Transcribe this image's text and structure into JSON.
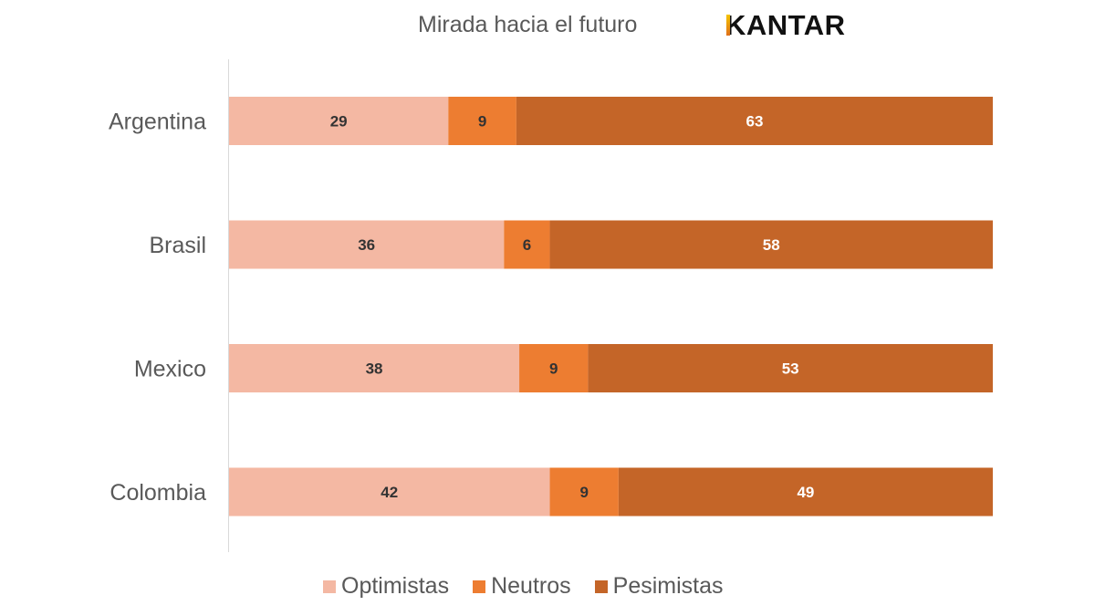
{
  "header": {
    "title": "Mirada hacia el futuro",
    "logo_text": "KANTAR",
    "logo_icon": "kantar-logo"
  },
  "chart_data": {
    "type": "bar",
    "orientation": "horizontal",
    "stacked": true,
    "normalized": true,
    "title": "Mirada hacia el futuro",
    "xlabel": "",
    "ylabel": "",
    "categories": [
      "Argentina",
      "Brasil",
      "Mexico",
      "Colombia"
    ],
    "series": [
      {
        "name": "Optimistas",
        "color": "#F4B8A3",
        "label_color": "#333333",
        "values": [
          29,
          36,
          38,
          42
        ]
      },
      {
        "name": "Neutros",
        "color": "#ED7D31",
        "label_color": "#333333",
        "values": [
          9,
          6,
          9,
          9
        ]
      },
      {
        "name": "Pesimistas",
        "color": "#C46528",
        "label_color": "#ffffff",
        "values": [
          63,
          58,
          53,
          49
        ]
      }
    ],
    "data_labels": true,
    "grid": false,
    "legend_position": "bottom"
  }
}
